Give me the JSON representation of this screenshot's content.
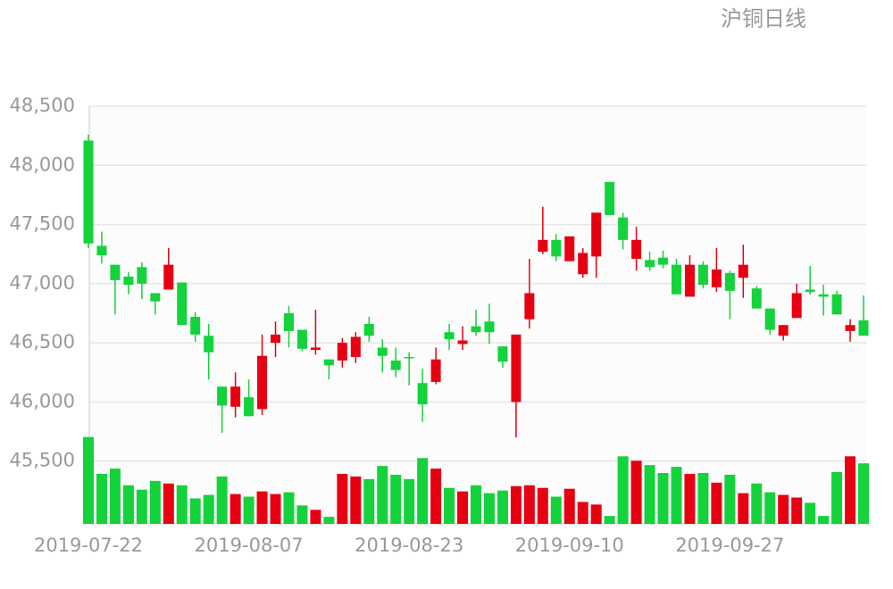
{
  "chart_data": {
    "type": "candlestick",
    "title": "沪铜日线",
    "categories": [
      "2019-07-22",
      null,
      null,
      null,
      null,
      null,
      null,
      null,
      null,
      null,
      null,
      null,
      "2019-08-07",
      null,
      null,
      null,
      null,
      null,
      null,
      null,
      null,
      null,
      null,
      null,
      "2019-08-23",
      null,
      null,
      null,
      null,
      null,
      null,
      null,
      null,
      null,
      null,
      null,
      "2019-09-10",
      null,
      null,
      null,
      null,
      null,
      null,
      null,
      null,
      null,
      null,
      null,
      "2019-09-27",
      null,
      null,
      null,
      null,
      null,
      null,
      null,
      null,
      null,
      null
    ],
    "open": [
      48210,
      47320,
      47160,
      47060,
      47140,
      46920,
      46950,
      47010,
      46720,
      46560,
      46130,
      45960,
      46040,
      45940,
      46500,
      46750,
      46610,
      46440,
      46360,
      46350,
      46380,
      46660,
      46460,
      46350,
      46380,
      46160,
      46170,
      46590,
      46490,
      46640,
      46680,
      46470,
      46000,
      46700,
      47270,
      47370,
      47190,
      47080,
      47230,
      47860,
      47560,
      47210,
      47200,
      47220,
      47160,
      46890,
      47160,
      46970,
      47090,
      47050,
      46960,
      46790,
      46560,
      46710,
      46950,
      46910,
      46910,
      46600,
      46690
    ],
    "high": [
      48260,
      47440,
      47160,
      47100,
      47180,
      46920,
      47300,
      47010,
      46760,
      46660,
      46130,
      46250,
      46190,
      46570,
      46680,
      46810,
      46610,
      46780,
      46360,
      46540,
      46590,
      46720,
      46530,
      46460,
      46420,
      46280,
      46460,
      46660,
      46640,
      46780,
      46830,
      46470,
      46570,
      47210,
      47650,
      47420,
      47400,
      47300,
      47600,
      47860,
      47600,
      47480,
      47270,
      47280,
      47210,
      47240,
      47190,
      47300,
      47110,
      47330,
      46980,
      46790,
      46650,
      47000,
      47150,
      46990,
      46940,
      46700,
      46900
    ],
    "low": [
      47300,
      47170,
      46740,
      46910,
      46870,
      46740,
      46950,
      46650,
      46510,
      46190,
      45740,
      45870,
      45880,
      45890,
      46380,
      46460,
      46430,
      46400,
      46190,
      46290,
      46330,
      46510,
      46250,
      46210,
      46140,
      45830,
      46150,
      46440,
      46440,
      46560,
      46490,
      46290,
      45700,
      46620,
      47250,
      47190,
      47190,
      47050,
      47050,
      47580,
      47290,
      47110,
      47110,
      47130,
      46910,
      46890,
      46960,
      46930,
      46700,
      46880,
      46790,
      46570,
      46520,
      46710,
      46910,
      46730,
      46740,
      46510,
      46560
    ],
    "close": [
      47340,
      47240,
      47030,
      46990,
      47000,
      46850,
      47160,
      46650,
      46570,
      46420,
      45970,
      46130,
      45880,
      46390,
      46570,
      46600,
      46450,
      46460,
      46310,
      46500,
      46550,
      46560,
      46390,
      46270,
      46370,
      45980,
      46360,
      46530,
      46520,
      46590,
      46590,
      46340,
      46570,
      46920,
      47370,
      47230,
      47400,
      47260,
      47600,
      47580,
      47370,
      47370,
      47140,
      47160,
      46910,
      47160,
      46990,
      47120,
      46940,
      47160,
      46790,
      46610,
      46650,
      46920,
      46930,
      46890,
      46740,
      46650,
      46560
    ],
    "volume": [
      99,
      57,
      63,
      44,
      39,
      49,
      46,
      44,
      29,
      33,
      54,
      34,
      31,
      37,
      34,
      36,
      21,
      16,
      8,
      57,
      54,
      51,
      66,
      56,
      51,
      75,
      63,
      41,
      37,
      44,
      35,
      38,
      43,
      44,
      41,
      31,
      40,
      25,
      22,
      9,
      77,
      72,
      67,
      58,
      65,
      57,
      58,
      47,
      56,
      35,
      46,
      36,
      33,
      30,
      24,
      9,
      59,
      77,
      69
    ],
    "ylim": [
      44970,
      48500
    ],
    "yticks": [
      {
        "value": 45500,
        "label": "45,500"
      },
      {
        "value": 46000,
        "label": "46,000"
      },
      {
        "value": 46500,
        "label": "46,500"
      },
      {
        "value": 47000,
        "label": "47,000"
      },
      {
        "value": 47500,
        "label": "47,500"
      },
      {
        "value": 48000,
        "label": "48,000"
      },
      {
        "value": 48500,
        "label": "48,500"
      }
    ],
    "vlim": [
      0,
      100
    ],
    "up_color": "#e60012",
    "down_color": "#14d23c",
    "grid": true
  }
}
